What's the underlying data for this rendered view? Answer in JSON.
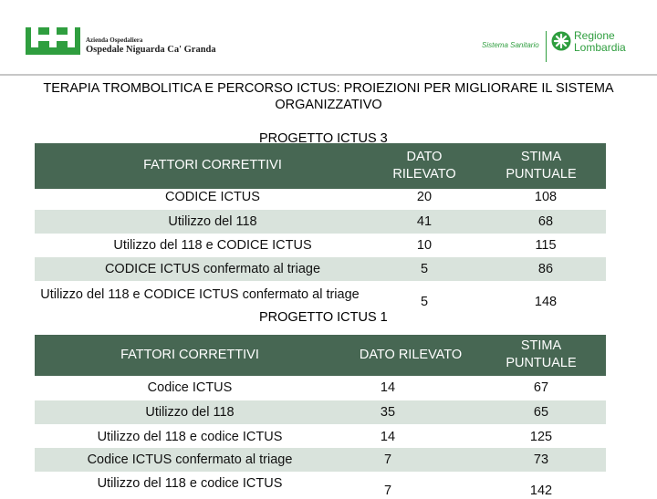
{
  "header": {
    "ospedale_line1": "Azienda Ospedaliera",
    "ospedale_line2": "Ospedale Niguarda Ca' Granda",
    "sistema": "Sistema Sanitario",
    "regione_line1": "Regione",
    "regione_line2": "Lombardia",
    "brand_green": "#2f9e3f"
  },
  "title": "TERAPIA TROMBOLITICA E PERCORSO ICTUS: PROIEZIONI PER MIGLIORARE IL SISTEMA ORGANIZZATIVO",
  "project3": {
    "label": "PROGETTO ICTUS 3",
    "headers": {
      "fattori": "FATTORI CORRETTIVI",
      "dato": "DATO RILEVATO",
      "stima": "STIMA PUNTUALE"
    },
    "rows": [
      {
        "fattore": "CODICE ICTUS",
        "dato": "20",
        "stima": "108"
      },
      {
        "fattore": "Utilizzo del 118",
        "dato": "41",
        "stima": "68"
      },
      {
        "fattore": "Utilizzo del 118 e CODICE ICTUS",
        "dato": "10",
        "stima": "115"
      },
      {
        "fattore": "CODICE ICTUS confermato al triage",
        "dato": "5",
        "stima": "86"
      },
      {
        "fattore": "Utilizzo del 118 e CODICE ICTUS confermato al triage",
        "dato": "5",
        "stima": "148"
      }
    ]
  },
  "project1": {
    "label": "PROGETTO ICTUS 1",
    "headers": {
      "fattori": "FATTORI CORRETTIVI",
      "dato": "DATO RILEVATO",
      "stima": "STIMA PUNTUALE"
    },
    "rows": [
      {
        "fattore": "Codice ICTUS",
        "dato": "14",
        "stima": "67"
      },
      {
        "fattore": "Utilizzo del 118",
        "dato": "35",
        "stima": "65"
      },
      {
        "fattore": "Utilizzo del 118 e codice ICTUS",
        "dato": "14",
        "stima": "125"
      },
      {
        "fattore": "Codice ICTUS confermato al triage",
        "dato": "7",
        "stima": "73"
      },
      {
        "fattore": "Utilizzo del 118 e codice ICTUS",
        "dato": "7",
        "stima": "142"
      }
    ]
  },
  "colors": {
    "header_band": "#476753",
    "row_stripe": "#d9e3dc"
  }
}
